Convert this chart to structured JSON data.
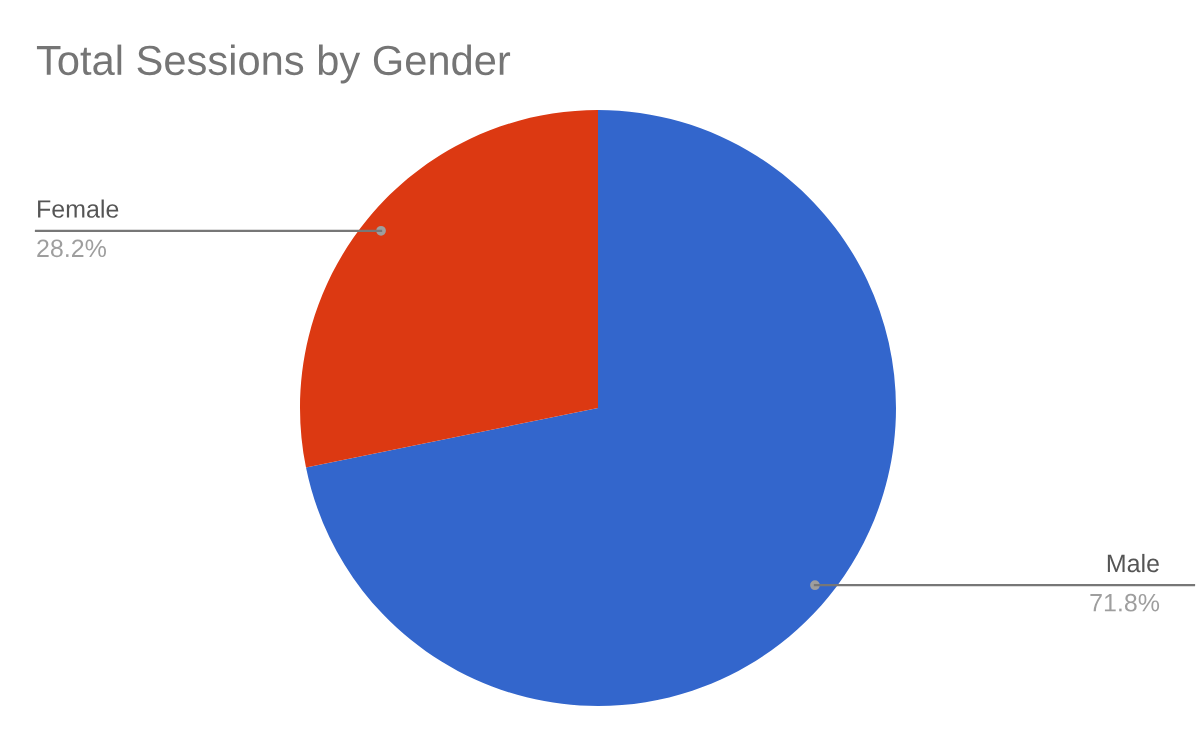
{
  "chart_data": {
    "type": "pie",
    "title": "Total Sessions by Gender",
    "categories": [
      "Male",
      "Female"
    ],
    "values": [
      71.8,
      28.2
    ],
    "value_labels": [
      "71.8%",
      "28.2%"
    ],
    "colors": [
      "#3366cc",
      "#dc3912"
    ],
    "legend": false
  }
}
